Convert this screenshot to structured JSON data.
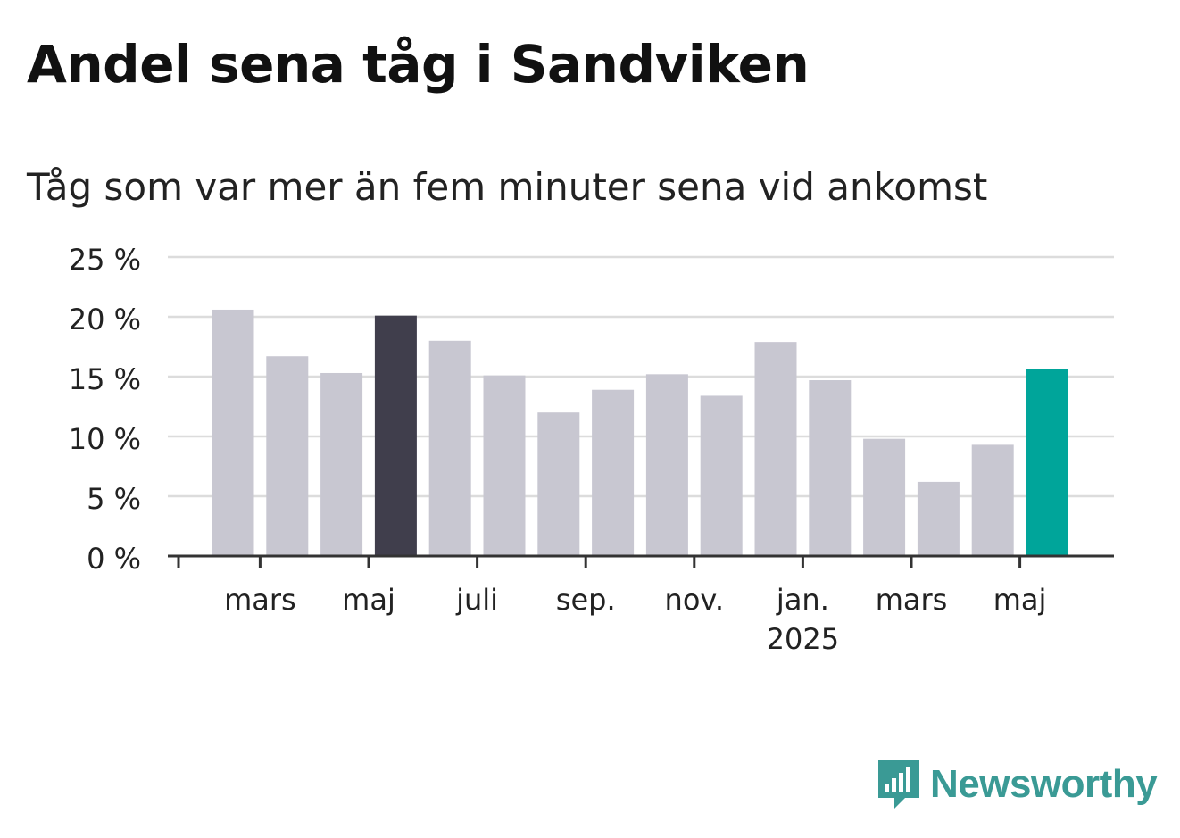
{
  "title": "Andel sena tåg i Sandviken",
  "subtitle": "Tåg som var mer än fem minuter sena vid ankomst",
  "brand": {
    "name": "Newsworthy",
    "icon": "newsworthy-logo-icon",
    "color": "#3a9a95"
  },
  "chart_data": {
    "type": "bar",
    "title": "Andel sena tåg i Sandviken",
    "subtitle": "Tåg som var mer än fem minuter sena vid ankomst",
    "ylim": [
      0,
      25
    ],
    "yticks": [
      0,
      5,
      10,
      15,
      20,
      25
    ],
    "ytick_suffix": " %",
    "grid": true,
    "xtick_labels": [
      {
        "index": 1,
        "label": "mars"
      },
      {
        "index": 3,
        "label": "maj"
      },
      {
        "index": 5,
        "label": "juli"
      },
      {
        "index": 7,
        "label": "sep."
      },
      {
        "index": 9,
        "label": "nov."
      },
      {
        "index": 11,
        "label": "jan.",
        "sublabel": "2025"
      },
      {
        "index": 13,
        "label": "mars"
      },
      {
        "index": 15,
        "label": "maj"
      }
    ],
    "values": [
      20.6,
      16.7,
      15.3,
      20.1,
      18.0,
      15.1,
      12.0,
      13.9,
      15.2,
      13.4,
      17.9,
      14.7,
      9.8,
      6.2,
      9.3,
      15.6
    ],
    "colors": {
      "default": "#c8c7d1",
      "highlight_previous": "#403e4c",
      "highlight_current": "#00a59a"
    },
    "highlight_previous_index": 3,
    "highlight_current_index": 15
  }
}
